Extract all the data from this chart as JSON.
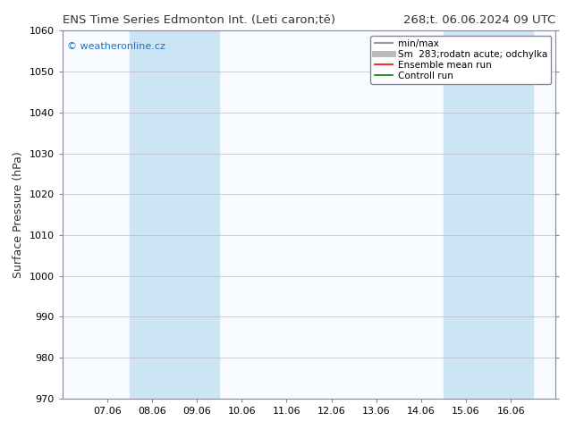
{
  "title_left": "ENS Time Series Edmonton Int. (Leti caron;tě)",
  "title_right": "268;t. 06.06.2024 09 UTC",
  "ylabel": "Surface Pressure (hPa)",
  "ylim": [
    970,
    1060
  ],
  "yticks": [
    970,
    980,
    990,
    1000,
    1010,
    1020,
    1030,
    1040,
    1050,
    1060
  ],
  "xtick_labels": [
    "07.06",
    "08.06",
    "09.06",
    "10.06",
    "11.06",
    "12.06",
    "13.06",
    "14.06",
    "15.06",
    "16.06"
  ],
  "xtick_positions": [
    1,
    2,
    3,
    4,
    5,
    6,
    7,
    8,
    9,
    10
  ],
  "xlim": [
    0,
    11
  ],
  "shaded_regions": [
    {
      "xmin": 1.5,
      "xmax": 3.5,
      "color": "#cce5f5"
    },
    {
      "xmin": 8.5,
      "xmax": 10.5,
      "color": "#cce5f5"
    }
  ],
  "watermark": "© weatheronline.cz",
  "watermark_color": "#1a6fc4",
  "bg_color": "#ffffff",
  "plot_bg_color": "#f8fcff",
  "grid_color": "#bbbbbb",
  "legend_entries": [
    {
      "label": "min/max",
      "color": "#999999",
      "lw": 1.5,
      "ls": "-"
    },
    {
      "label": "Sm  283;rodatn acute; odchylka",
      "color": "#bbbbbb",
      "lw": 5,
      "ls": "-"
    },
    {
      "label": "Ensemble mean run",
      "color": "#ff0000",
      "lw": 1.2,
      "ls": "-"
    },
    {
      "label": "Controll run",
      "color": "#008000",
      "lw": 1.2,
      "ls": "-"
    }
  ],
  "title_fontsize": 9.5,
  "tick_fontsize": 8,
  "ylabel_fontsize": 9,
  "border_color": "#888899",
  "legend_fontsize": 7.5
}
